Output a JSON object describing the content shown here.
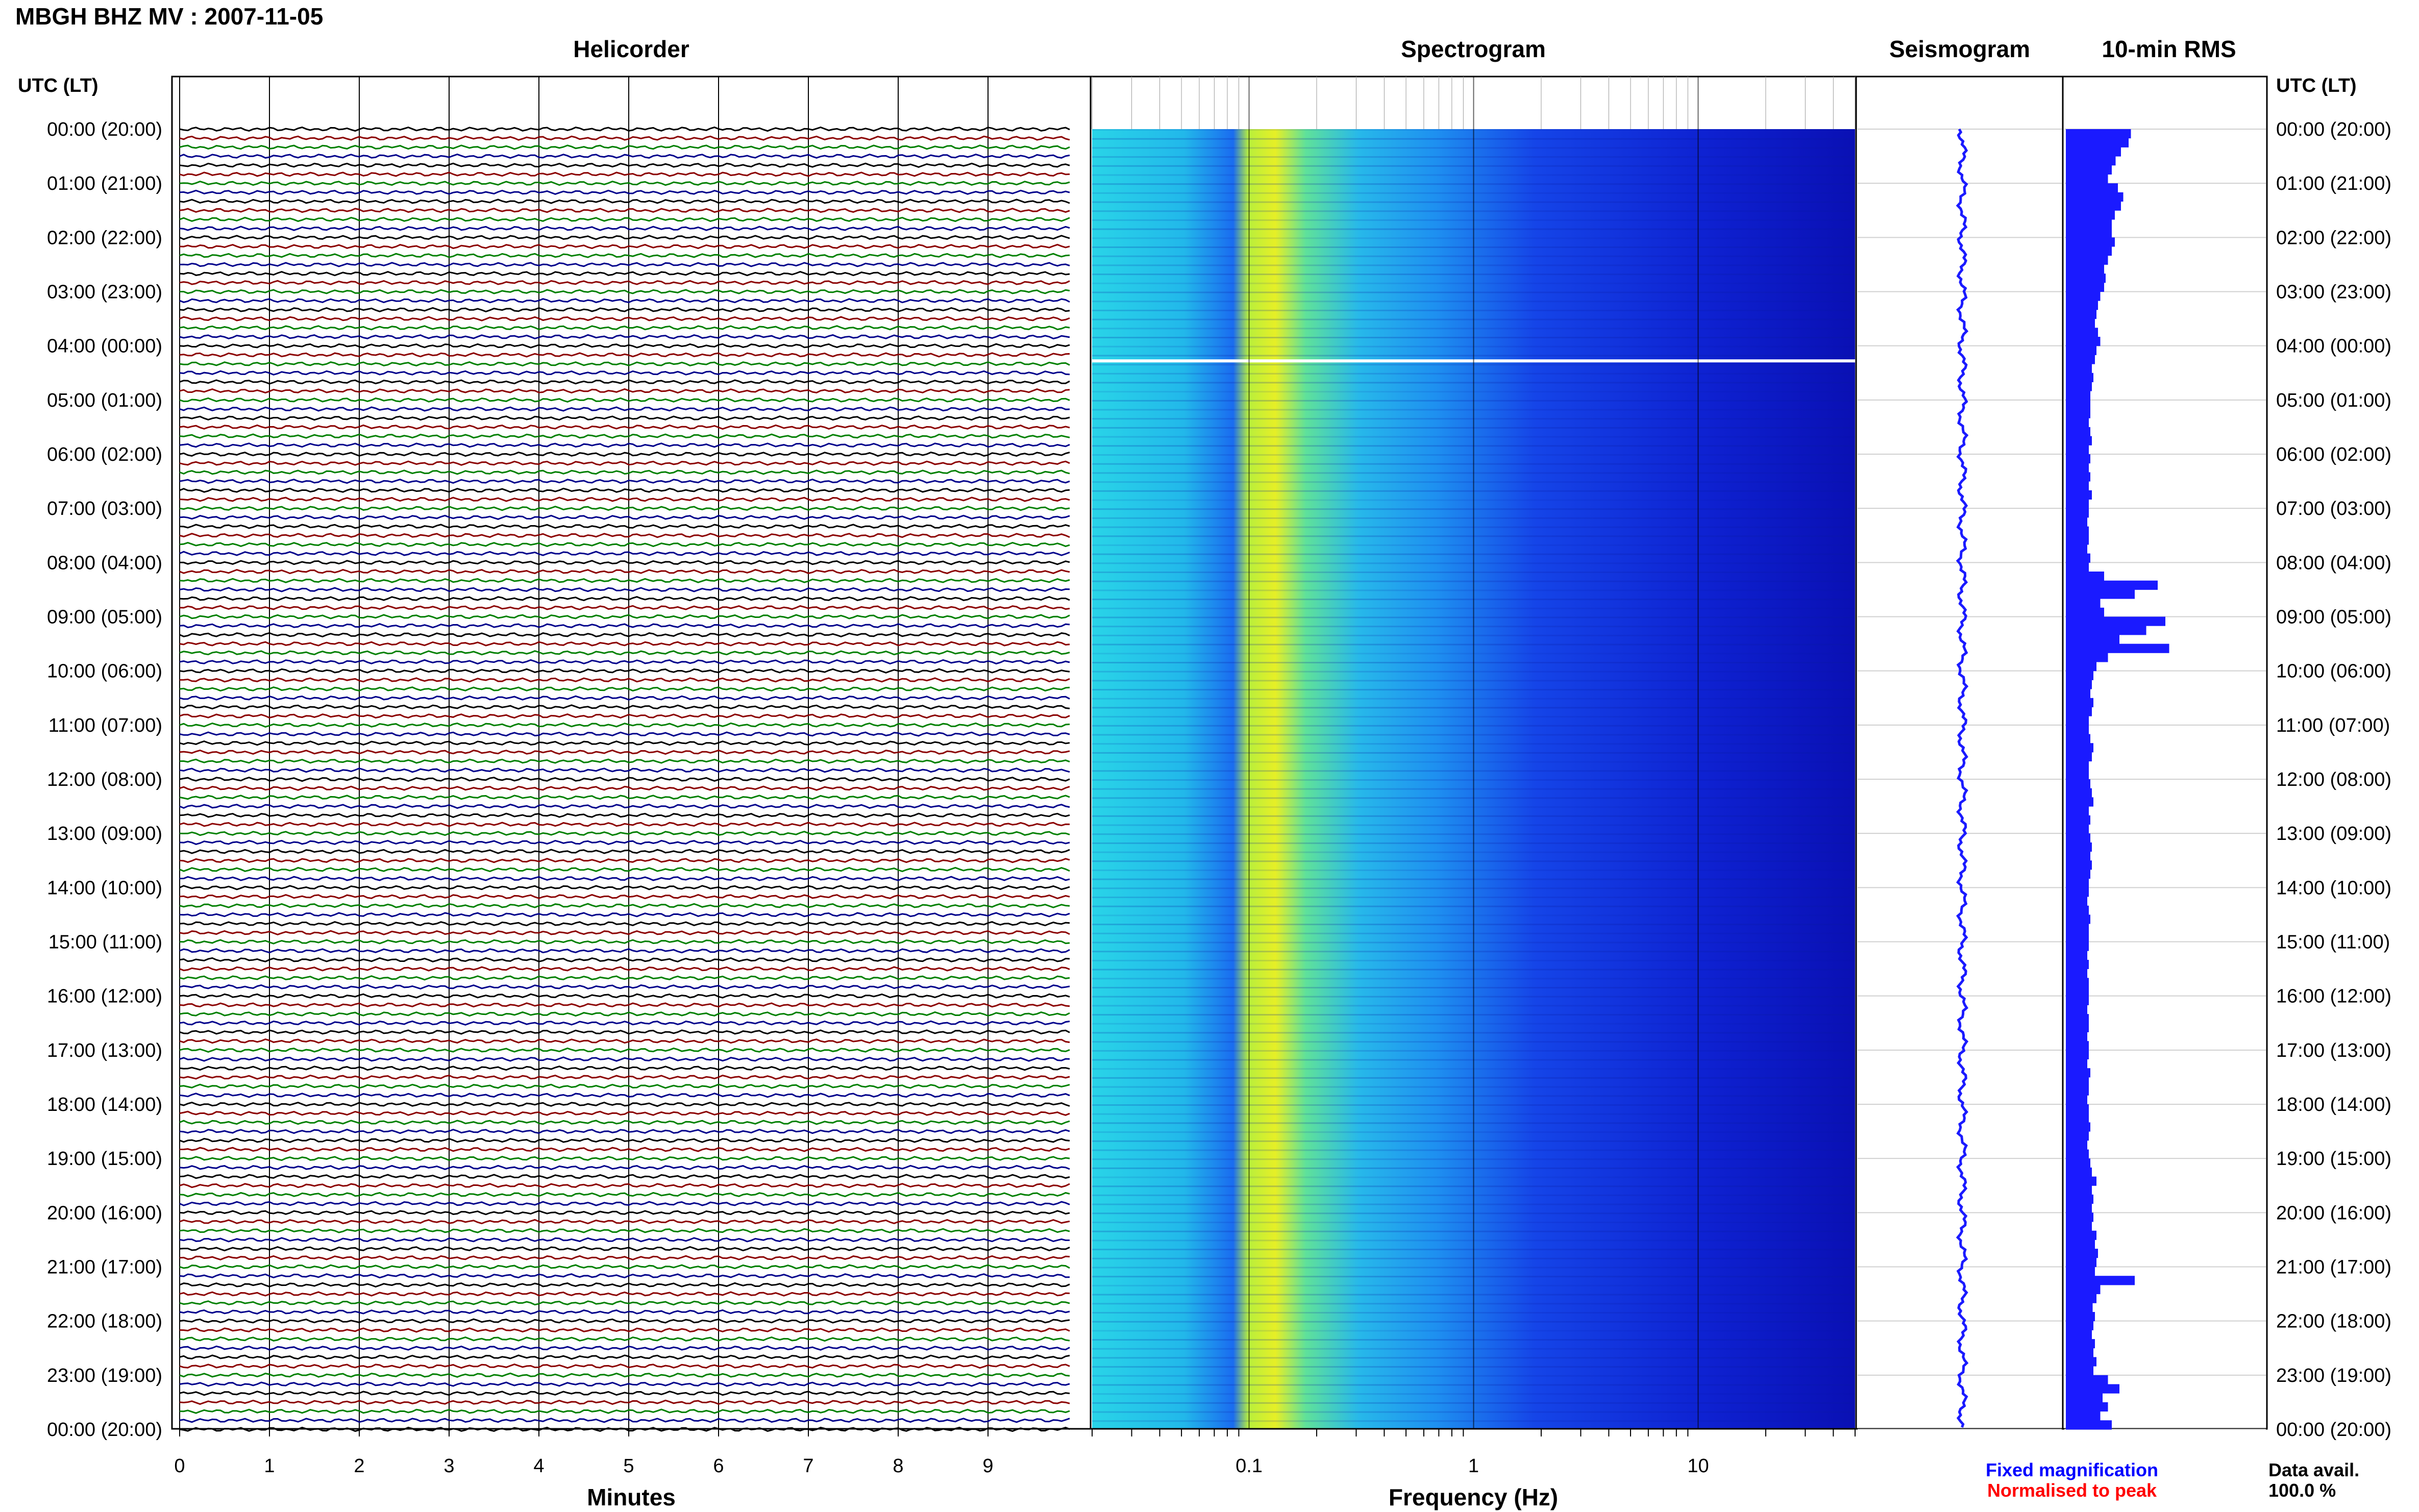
{
  "header": {
    "title": "MBGH BHZ MV : 2007-11-05"
  },
  "colors": {
    "trace_cycle": [
      "#000000",
      "#8b0000",
      "#008000",
      "#00008b"
    ]
  },
  "chart_data": [
    {
      "type": "line",
      "title": "Helicorder",
      "xlabel": "Minutes",
      "axis_title_left": "UTC (LT)",
      "xlim": [
        0,
        10
      ],
      "x_ticks": [
        "0",
        "1",
        "2",
        "3",
        "4",
        "5",
        "6",
        "7",
        "8",
        "9"
      ],
      "rows_per_hour": 6,
      "y_ticks": [
        "00:00 (20:00)",
        "01:00 (21:00)",
        "02:00 (22:00)",
        "03:00 (23:00)",
        "04:00 (00:00)",
        "05:00 (01:00)",
        "06:00 (02:00)",
        "07:00 (03:00)",
        "08:00 (04:00)",
        "09:00 (05:00)",
        "10:00 (06:00)",
        "11:00 (07:00)",
        "12:00 (08:00)",
        "13:00 (09:00)",
        "14:00 (10:00)",
        "15:00 (11:00)",
        "16:00 (12:00)",
        "17:00 (13:00)",
        "18:00 (14:00)",
        "19:00 (15:00)",
        "20:00 (16:00)",
        "21:00 (17:00)",
        "22:00 (18:00)",
        "23:00 (19:00)",
        "00:00 (20:00)"
      ]
    },
    {
      "type": "heatmap",
      "title": "Spectrogram",
      "xlabel": "Frequency (Hz)",
      "x_scale": "log",
      "xlim": [
        0.02,
        50
      ],
      "x_ticks": [
        "0.1",
        "1",
        "10"
      ],
      "data_gap_time": "04:15",
      "peak_band_hz": [
        0.15,
        0.3
      ]
    },
    {
      "type": "line",
      "title": "Seismogram"
    },
    {
      "type": "bar",
      "title": "10-min RMS",
      "axis_title_right": "UTC (LT)",
      "interval_minutes": 10,
      "values": [
        0.85,
        0.82,
        0.72,
        0.65,
        0.6,
        0.55,
        0.68,
        0.75,
        0.72,
        0.64,
        0.6,
        0.6,
        0.64,
        0.6,
        0.55,
        0.5,
        0.52,
        0.5,
        0.45,
        0.42,
        0.4,
        0.38,
        0.42,
        0.45,
        0.4,
        0.38,
        0.34,
        0.36,
        0.34,
        0.32,
        0.32,
        0.32,
        0.3,
        0.32,
        0.34,
        0.3,
        0.32,
        0.3,
        0.32,
        0.3,
        0.34,
        0.3,
        0.3,
        0.28,
        0.3,
        0.3,
        0.28,
        0.32,
        0.3,
        0.5,
        1.2,
        0.9,
        0.45,
        0.5,
        1.3,
        1.05,
        0.7,
        1.35,
        0.55,
        0.4,
        0.36,
        0.34,
        0.32,
        0.36,
        0.34,
        0.3,
        0.3,
        0.32,
        0.36,
        0.34,
        0.3,
        0.3,
        0.32,
        0.34,
        0.36,
        0.3,
        0.32,
        0.3,
        0.32,
        0.34,
        0.32,
        0.34,
        0.32,
        0.3,
        0.3,
        0.28,
        0.3,
        0.32,
        0.3,
        0.3,
        0.3,
        0.28,
        0.3,
        0.28,
        0.3,
        0.3,
        0.3,
        0.28,
        0.3,
        0.3,
        0.28,
        0.3,
        0.3,
        0.28,
        0.32,
        0.3,
        0.3,
        0.28,
        0.3,
        0.3,
        0.32,
        0.3,
        0.28,
        0.3,
        0.32,
        0.34,
        0.4,
        0.34,
        0.36,
        0.34,
        0.36,
        0.34,
        0.4,
        0.38,
        0.42,
        0.4,
        0.38,
        0.9,
        0.45,
        0.4,
        0.35,
        0.38,
        0.36,
        0.34,
        0.38,
        0.36,
        0.4,
        0.36,
        0.55,
        0.7,
        0.48,
        0.55,
        0.45,
        0.6
      ]
    }
  ],
  "legend": {
    "fixed_magnification": "Fixed magnification",
    "normalised_to_peak": "Normalised to peak",
    "fixed_color": "#0000ff",
    "normalised_color": "#ff0000"
  },
  "data_availability": {
    "label": "Data avail.",
    "value": "100.0 %"
  }
}
